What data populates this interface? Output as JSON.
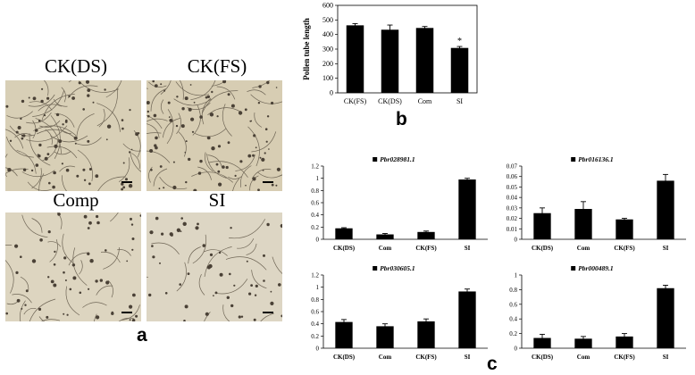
{
  "panel_a": {
    "letter": "a",
    "photos": [
      {
        "label": "CK(DS)",
        "tone": "#d8cfb6",
        "density": 70,
        "tubes": 55
      },
      {
        "label": "CK(FS)",
        "tone": "#d7cdb3",
        "density": 85,
        "tubes": 50
      },
      {
        "label": "Comp",
        "tone": "#ddd5c0",
        "density": 55,
        "tubes": 30
      },
      {
        "label": "SI",
        "tone": "#ddd6c4",
        "density": 50,
        "tubes": 18
      }
    ]
  },
  "panel_b": {
    "letter": "b"
  },
  "panel_c": {
    "letter": "c"
  },
  "chart_data": [
    {
      "id": "b",
      "type": "bar",
      "title": "",
      "ylabel": "Pollen tube length",
      "categories": [
        "CK(FS)",
        "CK(DS)",
        "Com",
        "SI"
      ],
      "values": [
        463,
        433,
        445,
        308
      ],
      "errors": [
        12,
        32,
        10,
        10
      ],
      "ylim": [
        0,
        600
      ],
      "yticks": [
        "0",
        "100",
        "200",
        "300",
        "400",
        "500",
        "600"
      ],
      "annotation": "*"
    },
    {
      "id": "c1",
      "type": "bar",
      "title": "Pbr028981.1",
      "categories": [
        "CK(DS)",
        "Com",
        "CK(FS)",
        "SI"
      ],
      "values": [
        0.18,
        0.08,
        0.12,
        0.98
      ],
      "errors": [
        0.01,
        0.015,
        0.015,
        0.02
      ],
      "ylim": [
        0,
        1.2
      ],
      "yticks": [
        "0",
        "0.2",
        "0.4",
        "0.6",
        "0.8",
        "1",
        "1.2"
      ]
    },
    {
      "id": "c2",
      "type": "bar",
      "title": "Pbr016136.1",
      "categories": [
        "CK(DS)",
        "Com",
        "CK(FS)",
        "SI"
      ],
      "values": [
        0.025,
        0.029,
        0.019,
        0.056
      ],
      "errors": [
        0.005,
        0.007,
        0.001,
        0.006
      ],
      "ylim": [
        0,
        0.07
      ],
      "yticks": [
        "0",
        "0.01",
        "0.02",
        "0.03",
        "0.04",
        "0.05",
        "0.06",
        "0.07"
      ]
    },
    {
      "id": "c3",
      "type": "bar",
      "title": "Pbr030605.1",
      "categories": [
        "CK(DS)",
        "Com",
        "CK(FS)",
        "SI"
      ],
      "values": [
        0.43,
        0.36,
        0.44,
        0.93
      ],
      "errors": [
        0.04,
        0.04,
        0.04,
        0.04
      ],
      "ylim": [
        0,
        1.2
      ],
      "yticks": [
        "0",
        "0.2",
        "0.4",
        "0.6",
        "0.8",
        "1",
        "1.2"
      ]
    },
    {
      "id": "c4",
      "type": "bar",
      "title": "Pbr000489.1",
      "categories": [
        "CK(DS)",
        "Com",
        "CK(FS)",
        "SI"
      ],
      "values": [
        0.14,
        0.13,
        0.16,
        0.82
      ],
      "errors": [
        0.05,
        0.03,
        0.04,
        0.04
      ],
      "ylim": [
        0,
        1
      ],
      "yticks": [
        "0",
        "0.2",
        "0.4",
        "0.6",
        "0.8",
        "1"
      ]
    }
  ]
}
